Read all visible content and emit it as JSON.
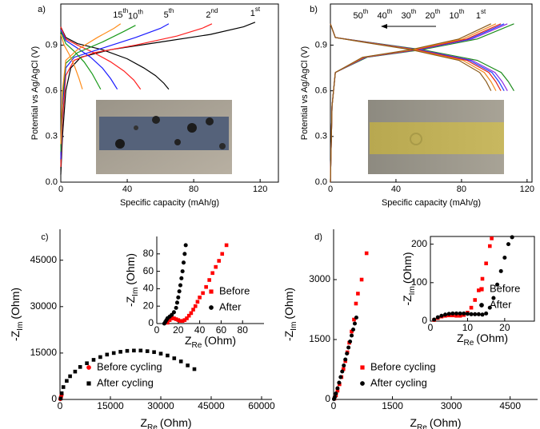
{
  "chart_data": [
    {
      "type": "line",
      "title": "a)",
      "xlabel": "Specific capacity (mAh/g)",
      "ylabel": "Potential vs Ag/AgCl (V)",
      "xlim": [
        0,
        131
      ],
      "xticks": [
        0,
        40,
        80,
        120
      ],
      "ylim": [
        0,
        1.17
      ],
      "yticks": [
        {
          "value": 0,
          "label": "0.0"
        },
        {
          "value": 0.3,
          "label": "0.3"
        },
        {
          "value": 0.6,
          "label": "0.6"
        },
        {
          "value": 0.9,
          "label": "0.9"
        }
      ],
      "box": true,
      "series": [
        {
          "label": {
            "text": "1",
            "sup": "st"
          },
          "color": "#000000",
          "x": [
            0,
            1,
            3,
            6,
            12,
            30,
            60,
            90,
            110,
            117,
            null,
            0,
            3,
            10,
            25,
            40,
            50,
            57,
            62,
            65
          ],
          "values": [
            0.05,
            0.3,
            0.6,
            0.75,
            0.82,
            0.87,
            0.92,
            0.97,
            1.02,
            1.05,
            null,
            1.02,
            0.95,
            0.91,
            0.87,
            0.81,
            0.75,
            0.7,
            0.65,
            0.61
          ]
        },
        {
          "label": {
            "text": "2",
            "sup": "nd"
          },
          "color": "#ff2020",
          "x": [
            0,
            1,
            3,
            8,
            20,
            45,
            70,
            85,
            91,
            null,
            0,
            3,
            10,
            20,
            30,
            38,
            44,
            48
          ],
          "values": [
            0.1,
            0.4,
            0.7,
            0.8,
            0.85,
            0.9,
            0.96,
            1.01,
            1.04,
            null,
            1.02,
            0.94,
            0.9,
            0.85,
            0.79,
            0.73,
            0.67,
            0.61
          ]
        },
        {
          "label": {
            "text": "5",
            "sup": "th"
          },
          "color": "#1a1aff",
          "x": [
            0,
            1,
            3,
            8,
            25,
            45,
            60,
            65,
            null,
            0,
            3,
            10,
            18,
            25,
            30,
            34
          ],
          "values": [
            0.15,
            0.5,
            0.75,
            0.82,
            0.88,
            0.95,
            1.01,
            1.04,
            null,
            1.0,
            0.93,
            0.88,
            0.82,
            0.75,
            0.68,
            0.61
          ]
        },
        {
          "label": {
            "text": "10",
            "sup": "th"
          },
          "color": "#1a9a1a",
          "x": [
            0,
            1,
            3,
            10,
            25,
            38,
            45,
            null,
            0,
            3,
            8,
            14,
            19,
            22,
            24
          ],
          "values": [
            0.2,
            0.55,
            0.78,
            0.85,
            0.92,
            0.99,
            1.03,
            null,
            0.99,
            0.91,
            0.86,
            0.79,
            0.71,
            0.65,
            0.61
          ]
        },
        {
          "label": {
            "text": "15",
            "sup": "th"
          },
          "color": "#ff8c1a",
          "x": [
            0,
            1,
            3,
            10,
            22,
            32,
            36,
            null,
            0,
            2,
            5,
            8,
            11,
            13
          ],
          "values": [
            0.25,
            0.6,
            0.8,
            0.87,
            0.95,
            1.01,
            1.04,
            null,
            0.97,
            0.9,
            0.84,
            0.77,
            0.68,
            0.61
          ]
        }
      ]
    },
    {
      "type": "line",
      "title": "b)",
      "xlabel": "Specific capacity (mAh/g)",
      "ylabel": "Potential vs Ag/AgCl (V)",
      "xlim": [
        0,
        123
      ],
      "xticks": [
        0,
        40,
        80,
        120
      ],
      "ylim": [
        0,
        1.17
      ],
      "yticks": [
        {
          "value": 0,
          "label": "0.0"
        },
        {
          "value": 0.3,
          "label": "0.3"
        },
        {
          "value": 0.6,
          "label": "0.6"
        },
        {
          "value": 0.9,
          "label": "0.9"
        }
      ],
      "box": true,
      "series": [
        {
          "label": {
            "text": "1",
            "sup": "st"
          },
          "color": "#1a8a1a",
          "x": [
            0,
            1,
            3,
            22.4,
            56,
            89.6,
            112,
            null,
            0,
            3,
            22.4,
            56,
            89.6,
            104.2,
            108.6,
            112
          ],
          "values": [
            0,
            0.5,
            0.72,
            0.82,
            0.87,
            0.94,
            1.04,
            null,
            1.04,
            0.95,
            0.92,
            0.87,
            0.8,
            0.72,
            0.66,
            0.6
          ]
        },
        {
          "label": {
            "text": "10",
            "sup": "th"
          },
          "color": "#8b2be2",
          "x": [
            0,
            1,
            3,
            21.6,
            54,
            86.4,
            108,
            null,
            0,
            3,
            21.6,
            54,
            86.4,
            100.4,
            104.8,
            108
          ],
          "values": [
            0,
            0.5,
            0.72,
            0.82,
            0.87,
            0.94,
            1.04,
            null,
            1.04,
            0.95,
            0.92,
            0.87,
            0.8,
            0.72,
            0.66,
            0.6
          ]
        },
        {
          "label": {
            "text": "20",
            "sup": "th"
          },
          "color": "#1f3fff",
          "x": [
            0,
            1,
            3,
            21.2,
            53,
            84.8,
            106,
            null,
            0,
            3,
            21.2,
            53,
            84.8,
            98.6,
            102.8,
            106
          ],
          "values": [
            0,
            0.5,
            0.72,
            0.82,
            0.87,
            0.94,
            1.04,
            null,
            1.04,
            0.95,
            0.92,
            0.87,
            0.8,
            0.72,
            0.66,
            0.6
          ]
        },
        {
          "label": {
            "text": "30",
            "sup": "th"
          },
          "color": "#e0201a",
          "x": [
            0,
            1,
            3,
            20.8,
            52,
            83.2,
            104,
            null,
            0,
            3,
            20.8,
            52,
            83.2,
            96.7,
            100.9,
            104
          ],
          "values": [
            0,
            0.5,
            0.72,
            0.82,
            0.87,
            0.94,
            1.04,
            null,
            1.04,
            0.95,
            0.92,
            0.87,
            0.8,
            0.72,
            0.66,
            0.6
          ]
        },
        {
          "label": {
            "text": "40",
            "sup": "th"
          },
          "color": "#f08a1a",
          "x": [
            0,
            1,
            3,
            20.2,
            50.5,
            80.8,
            101,
            null,
            0,
            3,
            20.2,
            50.5,
            80.8,
            93.9,
            98,
            101
          ],
          "values": [
            0,
            0.5,
            0.72,
            0.82,
            0.87,
            0.94,
            1.04,
            null,
            1.04,
            0.95,
            0.92,
            0.87,
            0.8,
            0.72,
            0.66,
            0.6
          ]
        },
        {
          "label": {
            "text": "50",
            "sup": "th"
          },
          "color": "#8b5a1a",
          "x": [
            0,
            1,
            3,
            19.6,
            49,
            78.4,
            98,
            null,
            0,
            3,
            19.6,
            49,
            78.4,
            91.1,
            95.1,
            98
          ],
          "values": [
            0,
            0.5,
            0.72,
            0.82,
            0.87,
            0.94,
            1.04,
            null,
            1.04,
            0.95,
            0.92,
            0.87,
            0.8,
            0.72,
            0.66,
            0.6
          ]
        }
      ]
    },
    {
      "type": "scatter",
      "title": "c)",
      "xlabel": {
        "text": "Z",
        "sub": "Re",
        "rest": "(Ohm)"
      },
      "ylabel": {
        "text": "-Z",
        "sub": "Im",
        "rest": "(Ohm)"
      },
      "xlim": [
        0,
        63100
      ],
      "xticks": [
        0,
        15000,
        30000,
        45000,
        60000
      ],
      "ylim": [
        0,
        55000
      ],
      "yticks": [
        0,
        15000,
        30000,
        45000
      ],
      "box": false,
      "legend": "lower left",
      "series": [
        {
          "name": "Before cycling",
          "color": "#ff0000",
          "marker": "circle",
          "x": [
            100,
            200,
            300,
            400,
            500
          ],
          "values": [
            100,
            400,
            800,
            1200,
            1600
          ]
        },
        {
          "name": "After cycling",
          "color": "#000000",
          "marker": "square",
          "x": [
            200,
            500,
            1000,
            2000,
            3000,
            4500,
            6000,
            8000,
            10000,
            12000,
            14000,
            16000,
            18000,
            20000,
            22000,
            24000,
            26000,
            28000,
            30000,
            32000,
            34000,
            36000,
            38000,
            40000
          ],
          "values": [
            300,
            2000,
            4000,
            6000,
            7500,
            9000,
            10500,
            11700,
            12800,
            13700,
            14500,
            15000,
            15400,
            15700,
            15800,
            15800,
            15600,
            15300,
            14800,
            14200,
            13300,
            12300,
            11000,
            9800
          ]
        }
      ]
    },
    {
      "type": "scatter",
      "xlabel": {
        "text": "Z",
        "sub": "Re",
        "rest": "(Ohm)"
      },
      "ylabel": {
        "text": "-Z",
        "sub": "Im",
        "rest": "(Ohm)"
      },
      "xlim": [
        0,
        100
      ],
      "xticks": [
        0,
        20,
        40,
        60,
        80
      ],
      "ylim": [
        0,
        100
      ],
      "yticks": [
        0,
        20,
        40,
        60,
        80
      ],
      "box": false,
      "legend": "lower right",
      "series": [
        {
          "name": "Before",
          "color": "#ff0000",
          "marker": "square",
          "x": [
            10,
            12,
            14,
            16,
            18,
            20,
            22,
            24,
            26,
            28,
            30,
            32,
            34,
            36,
            38,
            40,
            43,
            46,
            49,
            52,
            55,
            58,
            61,
            65
          ],
          "values": [
            1,
            4,
            6,
            6,
            5,
            4,
            3,
            3,
            4,
            6,
            9,
            12,
            16,
            20,
            25,
            30,
            35,
            42,
            50,
            58,
            65,
            72,
            80,
            90
          ]
        },
        {
          "name": "After",
          "color": "#000000",
          "marker": "circle",
          "x": [
            7,
            8,
            9,
            10,
            12,
            14,
            16,
            18,
            19,
            20,
            21,
            22,
            23,
            24,
            25,
            26,
            27
          ],
          "values": [
            0,
            2,
            4,
            6,
            8,
            10,
            13,
            18,
            24,
            30,
            37,
            44,
            52,
            60,
            70,
            80,
            90
          ]
        }
      ]
    },
    {
      "type": "scatter",
      "title": "d)",
      "xlabel": {
        "text": "Z",
        "sub": "Re",
        "rest": "(Ohm)"
      },
      "ylabel": {
        "text": "-Z",
        "sub": "Im",
        "rest": "(Ohm)"
      },
      "xlim": [
        0,
        5200
      ],
      "xticks": [
        0,
        1500,
        3000,
        4500
      ],
      "ylim": [
        0,
        4260
      ],
      "yticks": [
        0,
        1500,
        3000
      ],
      "box": false,
      "legend": "lower left",
      "series": [
        {
          "name": "Before cycling",
          "color": "#ff0000",
          "marker": "square",
          "x": [
            20,
            60,
            100,
            150,
            200,
            250,
            300,
            350,
            400,
            460,
            520,
            570,
            620,
            715,
            840
          ],
          "values": [
            20,
            100,
            220,
            380,
            560,
            760,
            960,
            1180,
            1420,
            1700,
            2000,
            2400,
            2650,
            3000,
            3660
          ]
        },
        {
          "name": "After  cycling",
          "color": "#000000",
          "marker": "circle",
          "x": [
            10,
            30,
            60,
            100,
            140,
            180,
            220,
            260,
            300,
            340,
            380,
            420,
            460,
            500,
            540,
            580
          ],
          "values": [
            10,
            60,
            150,
            280,
            420,
            560,
            700,
            850,
            1000,
            1150,
            1300,
            1450,
            1600,
            1750,
            1900,
            2050
          ]
        }
      ]
    },
    {
      "type": "scatter",
      "xlabel": {
        "text": "Z",
        "sub": "Re",
        "rest": "(Ohm)"
      },
      "ylabel": {
        "text": "-Z",
        "sub": "Im",
        "rest": "(Ohm)"
      },
      "xlim": [
        0,
        28
      ],
      "xticks": [
        0,
        10,
        20
      ],
      "ylim": [
        0,
        220
      ],
      "yticks": [
        0,
        100,
        200
      ],
      "box": true,
      "legend": "lower right",
      "series": [
        {
          "name": "Before",
          "color": "#ff0000",
          "marker": "square",
          "x": [
            1,
            2,
            3,
            4,
            5,
            6,
            7,
            8,
            9,
            10,
            11,
            12,
            13,
            14,
            15,
            16,
            16.5
          ],
          "values": [
            3,
            8,
            12,
            14,
            15,
            15,
            14,
            14,
            16,
            22,
            35,
            55,
            80,
            110,
            150,
            195,
            215
          ]
        },
        {
          "name": "After",
          "color": "#000000",
          "marker": "circle",
          "x": [
            1,
            2,
            3,
            4,
            5,
            6,
            7,
            8,
            9,
            10,
            11,
            12,
            13,
            14,
            15,
            16,
            17,
            18,
            19,
            20,
            21,
            22
          ],
          "values": [
            4,
            10,
            14,
            17,
            19,
            20,
            20,
            20,
            20,
            19,
            18,
            18,
            18,
            17,
            20,
            35,
            60,
            95,
            130,
            165,
            200,
            218
          ]
        }
      ]
    }
  ]
}
